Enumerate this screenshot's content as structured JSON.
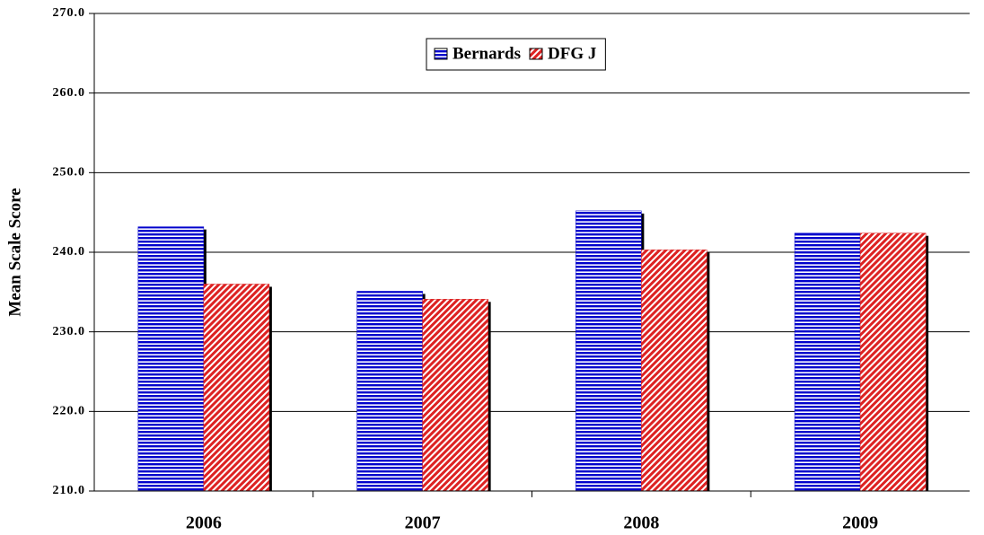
{
  "chart_data": {
    "type": "bar",
    "y_label": "Mean Scale Score",
    "categories": [
      "2006",
      "2007",
      "2008",
      "2009"
    ],
    "series": [
      {
        "name": "Bernards",
        "color": "#0000cc",
        "values": [
          243.2,
          235.1,
          245.2,
          242.4
        ]
      },
      {
        "name": "DFG J",
        "color": "#dd2222",
        "values": [
          236.0,
          234.1,
          240.3,
          242.4
        ]
      }
    ],
    "ylim": [
      210,
      270
    ],
    "yticks": [
      {
        "value": 210,
        "label": "210.0"
      },
      {
        "value": 220,
        "label": "220.0"
      },
      {
        "value": 230,
        "label": "230.0"
      },
      {
        "value": 240,
        "label": "240.0"
      },
      {
        "value": 250,
        "label": "250.0"
      },
      {
        "value": 260,
        "label": "260.0"
      },
      {
        "value": 270,
        "label": "270.0"
      }
    ],
    "grid": true,
    "legend": "top"
  }
}
